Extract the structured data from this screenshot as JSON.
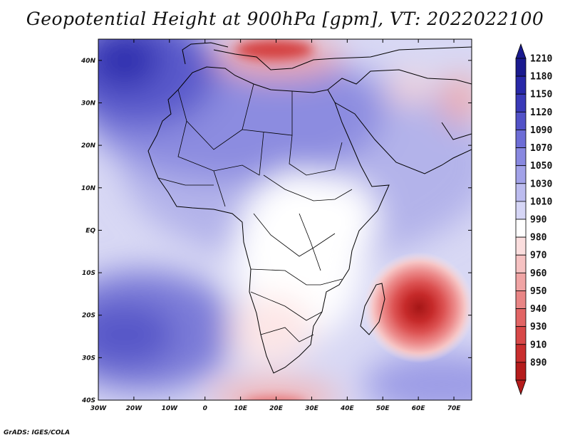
{
  "title": "Geopotential Height at 900hPa [gpm], VT: 2022022100",
  "footer": "GrADS: IGES/COLA",
  "map": {
    "lon_labels": [
      "30W",
      "20W",
      "10W",
      "0",
      "10E",
      "20E",
      "30E",
      "40E",
      "50E",
      "60E",
      "70E"
    ],
    "lat_labels": [
      "40N",
      "30N",
      "20N",
      "10N",
      "EQ",
      "10S",
      "20S",
      "30S",
      "40S"
    ]
  },
  "colorbar": {
    "levels": [
      "1210",
      "1180",
      "1150",
      "1120",
      "1090",
      "1070",
      "1050",
      "1030",
      "1010",
      "990",
      "980",
      "970",
      "960",
      "950",
      "940",
      "930",
      "910",
      "890"
    ],
    "colors": [
      "#1a1a8f",
      "#2828a8",
      "#3a3ab8",
      "#5252c8",
      "#6d6dd6",
      "#8888e0",
      "#a2a2e8",
      "#bcbcef",
      "#d6d6f6",
      "#ffffff",
      "#fbdede",
      "#f6c2c2",
      "#f0a4a4",
      "#e98585",
      "#e26565",
      "#d84848",
      "#c92e2e",
      "#b51c1c"
    ]
  },
  "chart_data": {
    "type": "heatmap",
    "title": "Geopotential Height at 900hPa [gpm], VT: 2022022100",
    "variable": "Geopotential Height",
    "level_hPa": 900,
    "units": "gpm",
    "valid_time": "2022022100",
    "lon_range": [
      "30W",
      "75E"
    ],
    "lat_range": [
      "40S",
      "45N"
    ],
    "contour_levels": [
      890,
      910,
      930,
      940,
      950,
      960,
      970,
      980,
      990,
      1010,
      1030,
      1050,
      1070,
      1090,
      1120,
      1150,
      1180,
      1210
    ],
    "features": [
      {
        "name": "tropical cyclone low east of Madagascar",
        "lat": -19,
        "lon": 60,
        "min_value_approx": 890
      },
      {
        "name": "high over North Atlantic / NW Africa",
        "lat": 40,
        "lon": -27,
        "max_value_approx": 1180
      }
    ]
  }
}
